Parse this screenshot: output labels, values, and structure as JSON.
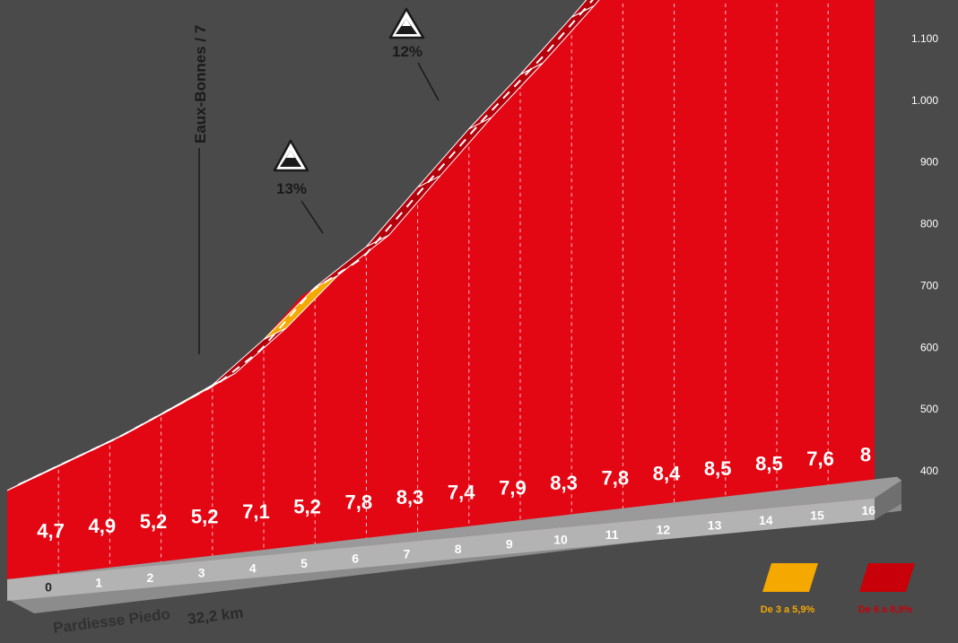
{
  "chart_data": {
    "type": "area",
    "title": "",
    "xlabel": "",
    "ylabel": "",
    "x": [
      0,
      1,
      2,
      3,
      4,
      5,
      6,
      7,
      8,
      9,
      10,
      11,
      12,
      13,
      14,
      15,
      16
    ],
    "altitude_ticks": [
      "400",
      "500",
      "600",
      "700",
      "800",
      "900",
      "1.000",
      "1.100"
    ],
    "ylim": [
      400,
      1140
    ],
    "gradients": [
      "4,7",
      "4,9",
      "5,2",
      "5,2",
      "7,1",
      "5,2",
      "7,8",
      "8,3",
      "7,4",
      "7,9",
      "8,3",
      "7,8",
      "8,4",
      "8,5",
      "8,5",
      "7,6",
      "8"
    ],
    "surface_categories": [
      "yellow",
      "yellow",
      "yellow",
      "yellow",
      "red",
      "yellow",
      "red",
      "red",
      "red",
      "red",
      "red",
      "red",
      "red",
      "red",
      "red",
      "red",
      "red"
    ],
    "annotations": [
      {
        "text": "13%",
        "icon": "mountain-summit-icon"
      },
      {
        "text": "12%",
        "icon": "mountain-summit-icon"
      }
    ],
    "place": "Eaux-Bonnes / 7",
    "total_distance": "32,2 km",
    "footer_place": "Pardiesse Piedo",
    "legend": [
      {
        "label": "De 3 a 5,9%",
        "color": "#f5a800"
      },
      {
        "label": "De 6 a 8,9%",
        "color": "#c8000a"
      }
    ]
  },
  "colors": {
    "background": "#4a4a4a",
    "profile_red": "#e30613",
    "surface_red": "#b5000b",
    "surface_yellow": "#f5a800",
    "base_gray": "#b3b3b3",
    "base_gray_dark": "#8c8c8c"
  }
}
